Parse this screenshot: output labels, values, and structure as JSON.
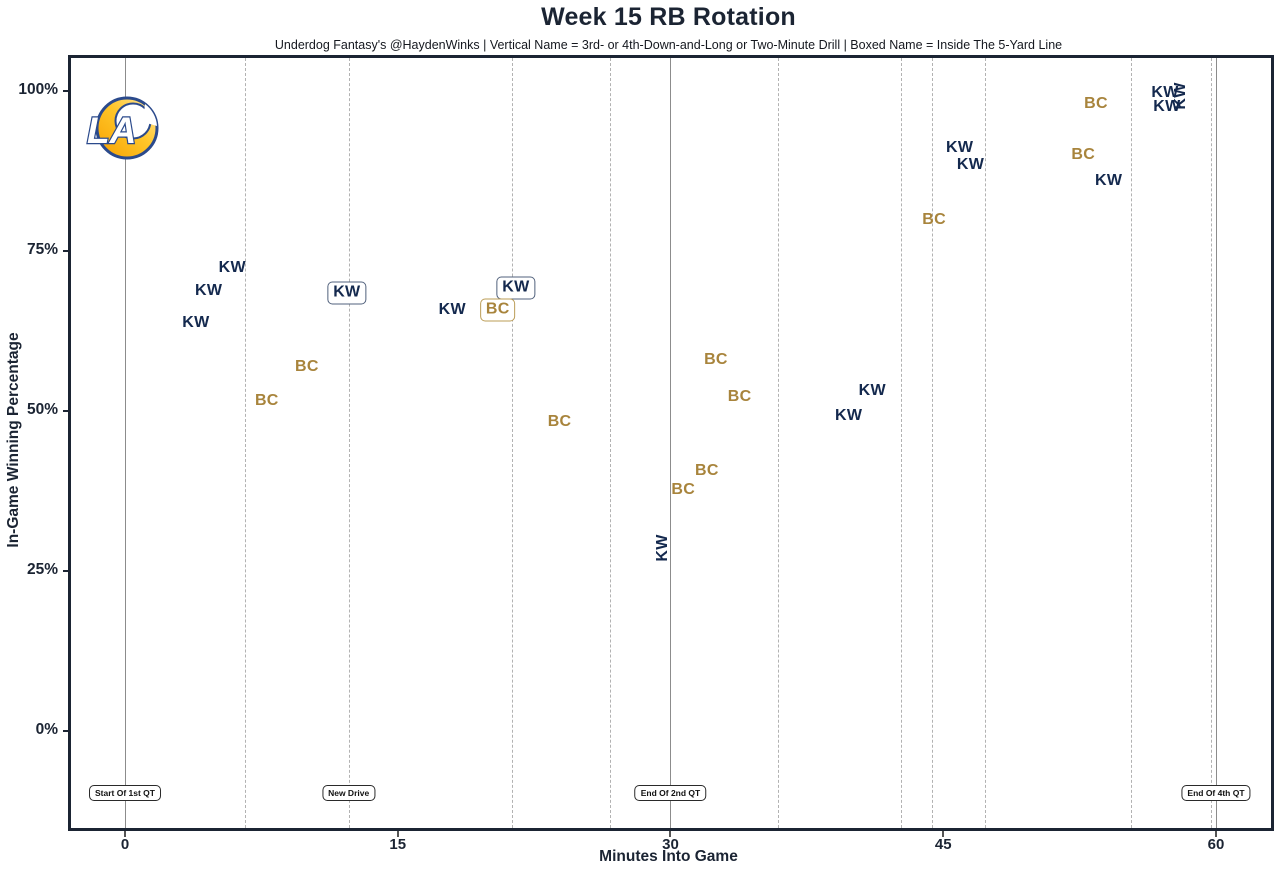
{
  "chart_data": {
    "type": "scatter",
    "title": "Week 15 RB Rotation",
    "subtitle": "Underdog Fantasy's @HaydenWinks | Vertical Name = 3rd- or 4th-Down-and-Long or Two-Minute Drill | Boxed Name = Inside The 5-Yard Line",
    "xlabel": "Minutes Into Game",
    "ylabel": "In-Game Winning Percentage",
    "xlim": [
      -3.1,
      63.1
    ],
    "ylim": [
      -15.2,
      105.2
    ],
    "grid": "vertical-drive-lines-only",
    "x_ticks": [
      {
        "minute": 0,
        "label": "0"
      },
      {
        "minute": 15,
        "label": "15"
      },
      {
        "minute": 30,
        "label": "30"
      },
      {
        "minute": 45,
        "label": "45"
      },
      {
        "minute": 60,
        "label": "60"
      }
    ],
    "y_ticks": [
      {
        "pct": 0,
        "label": "0%"
      },
      {
        "pct": 25,
        "label": "25%"
      },
      {
        "pct": 50,
        "label": "50%"
      },
      {
        "pct": 75,
        "label": "75%"
      },
      {
        "pct": 100,
        "label": "100%"
      }
    ],
    "quarter_lines": [
      {
        "minute": 0,
        "label": "Start Of 1st QT"
      },
      {
        "minute": 30,
        "label": "End Of 2nd QT"
      },
      {
        "minute": 60,
        "label": "End Of 4th QT"
      }
    ],
    "drive_lines_minutes": [
      6.6,
      12.3,
      21.3,
      26.7,
      35.9,
      42.7,
      44.4,
      47.3,
      55.3,
      59.7
    ],
    "event_labels": [
      {
        "minute": 0,
        "text": "Start Of 1st QT"
      },
      {
        "minute": 12.3,
        "text": "New Drive"
      },
      {
        "minute": 30,
        "text": "End Of 2nd QT"
      },
      {
        "minute": 60,
        "text": "End Of 4th QT"
      }
    ],
    "players": {
      "KW": {
        "color": "#14294e",
        "box_border": "#51617c"
      },
      "BC": {
        "color": "#a8843c",
        "box_border": "#bb9c56"
      }
    },
    "points": [
      {
        "player": "KW",
        "minute": 3.9,
        "win_pct": 63.8,
        "style": "plain"
      },
      {
        "player": "KW",
        "minute": 4.6,
        "win_pct": 68.8,
        "style": "plain"
      },
      {
        "player": "KW",
        "minute": 5.9,
        "win_pct": 72.3,
        "style": "plain"
      },
      {
        "player": "KW",
        "minute": 12.2,
        "win_pct": 68.4,
        "style": "boxed"
      },
      {
        "player": "KW",
        "minute": 18.0,
        "win_pct": 65.8,
        "style": "plain"
      },
      {
        "player": "KW",
        "minute": 21.5,
        "win_pct": 69.2,
        "style": "boxed"
      },
      {
        "player": "KW",
        "minute": 29.6,
        "win_pct": 28.6,
        "style": "vertical"
      },
      {
        "player": "KW",
        "minute": 39.8,
        "win_pct": 49.2,
        "style": "plain"
      },
      {
        "player": "KW",
        "minute": 41.1,
        "win_pct": 53.1,
        "style": "plain"
      },
      {
        "player": "KW",
        "minute": 45.9,
        "win_pct": 91.1,
        "style": "plain"
      },
      {
        "player": "KW",
        "minute": 46.5,
        "win_pct": 88.5,
        "style": "plain"
      },
      {
        "player": "KW",
        "minute": 54.1,
        "win_pct": 85.9,
        "style": "plain"
      },
      {
        "player": "KW",
        "minute": 57.2,
        "win_pct": 99.7,
        "style": "plain"
      },
      {
        "player": "KW",
        "minute": 57.3,
        "win_pct": 97.5,
        "style": "plain"
      },
      {
        "player": "KW",
        "minute": 58.1,
        "win_pct": 99.2,
        "style": "vertical"
      },
      {
        "player": "BC",
        "minute": 7.8,
        "win_pct": 51.6,
        "style": "plain"
      },
      {
        "player": "BC",
        "minute": 10.0,
        "win_pct": 56.9,
        "style": "plain"
      },
      {
        "player": "BC",
        "minute": 20.5,
        "win_pct": 65.8,
        "style": "boxed"
      },
      {
        "player": "BC",
        "minute": 23.9,
        "win_pct": 48.3,
        "style": "plain"
      },
      {
        "player": "BC",
        "minute": 30.7,
        "win_pct": 37.7,
        "style": "plain"
      },
      {
        "player": "BC",
        "minute": 32.0,
        "win_pct": 40.6,
        "style": "plain"
      },
      {
        "player": "BC",
        "minute": 32.5,
        "win_pct": 58.0,
        "style": "plain"
      },
      {
        "player": "BC",
        "minute": 33.8,
        "win_pct": 52.2,
        "style": "plain"
      },
      {
        "player": "BC",
        "minute": 44.5,
        "win_pct": 79.9,
        "style": "plain"
      },
      {
        "player": "BC",
        "minute": 52.7,
        "win_pct": 90.0,
        "style": "plain"
      },
      {
        "player": "BC",
        "minute": 53.4,
        "win_pct": 98.0,
        "style": "plain"
      }
    ],
    "logo": {
      "team": "Los Angeles Rams",
      "letters": "LA"
    }
  }
}
